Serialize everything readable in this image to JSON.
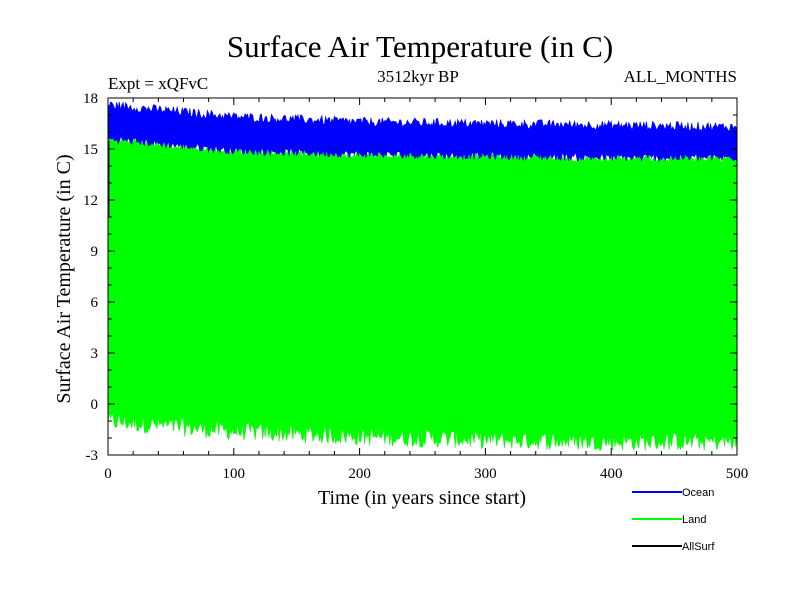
{
  "chart_data": {
    "type": "line",
    "title": "Surface Air Temperature (in C)",
    "experiment_label": "Expt = xQFvC",
    "subtitle": "3512kyr BP",
    "months_label": "ALL_MONTHS",
    "xlabel": "Time (in years since start)",
    "ylabel": "Surface Air Temperature (in C)",
    "xlim": [
      0,
      500
    ],
    "ylim": [
      -3,
      18
    ],
    "x_ticks": [
      0,
      100,
      200,
      300,
      400,
      500
    ],
    "y_ticks": [
      -3,
      0,
      3,
      6,
      9,
      12,
      15,
      18
    ],
    "x_tick_labels": [
      "0",
      "100",
      "200",
      "300",
      "400",
      "500"
    ],
    "y_tick_labels": [
      "-3",
      "0",
      "3",
      "6",
      "9",
      "12",
      "15",
      "18"
    ],
    "series": [
      {
        "name": "Ocean",
        "color": "#0000ff",
        "band_upper": [
          17.6,
          16.9,
          16.6,
          16.5,
          16.4,
          16.3
        ],
        "band_lower": [
          15.6,
          14.9,
          14.7,
          14.6,
          14.5,
          14.5
        ]
      },
      {
        "name": "Land",
        "color": "#00ff00",
        "band_upper": [
          15.6,
          14.9,
          14.7,
          14.6,
          14.5,
          14.5
        ],
        "band_lower": [
          -1.0,
          -1.6,
          -1.9,
          -2.1,
          -2.2,
          -2.2
        ]
      },
      {
        "name": "AllSurf",
        "color": "#000000",
        "band_upper": [],
        "band_lower": []
      }
    ],
    "legend": [
      {
        "label": "Ocean",
        "color": "#0000ff"
      },
      {
        "label": "Land",
        "color": "#00ff00"
      },
      {
        "label": "AllSurf",
        "color": "#000000"
      }
    ]
  }
}
